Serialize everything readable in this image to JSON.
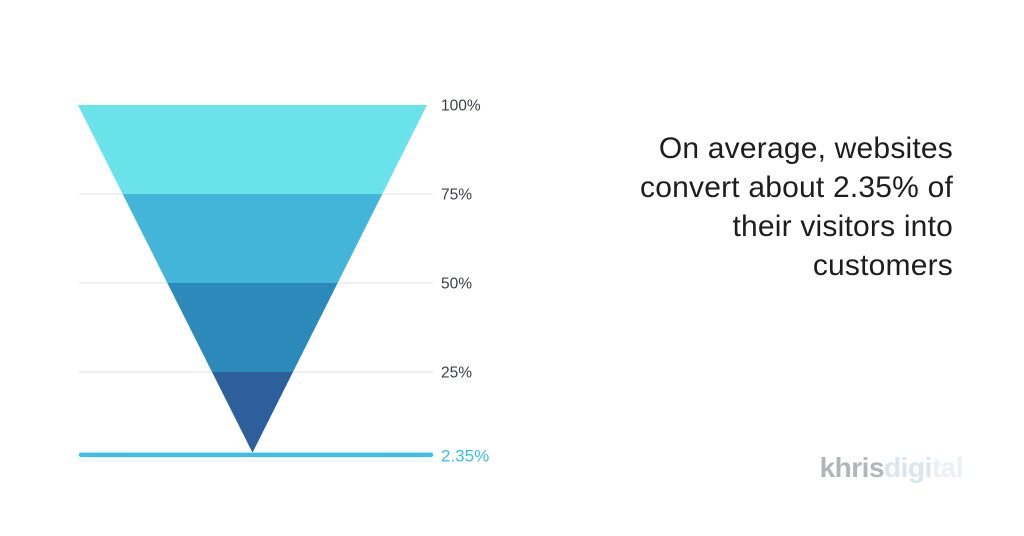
{
  "chart_data": {
    "type": "funnel",
    "orientation": "inverted-triangle",
    "title": "",
    "levels": [
      {
        "label": "100%",
        "value": 100,
        "color": "#69e3e9"
      },
      {
        "label": "75%",
        "value": 75,
        "color": "#43b5d8"
      },
      {
        "label": "50%",
        "value": 50,
        "color": "#2c8aba"
      },
      {
        "label": "25%",
        "value": 25,
        "color": "#2d5f9c"
      }
    ],
    "highlight": {
      "label": "2.35%",
      "value": 2.35,
      "color": "#38c0e8"
    },
    "axis": {
      "grid": true,
      "ylim": [
        0,
        100
      ],
      "tick_color": "#3c4046",
      "grid_color": "#dde0e4",
      "zero_line_color": "#e8ebee",
      "legend": "none"
    }
  },
  "quote": {
    "lines": [
      "On average, websites",
      "convert about 2.35% of",
      "their visitors into",
      "customers"
    ],
    "color": "#1d1d1f"
  },
  "watermark": {
    "parts": [
      {
        "text": "khris",
        "color": "#b3b6b8"
      },
      {
        "text": "digi",
        "color": "#d9e7ec"
      },
      {
        "text": "tal",
        "color": "#eaf1f3"
      }
    ]
  }
}
